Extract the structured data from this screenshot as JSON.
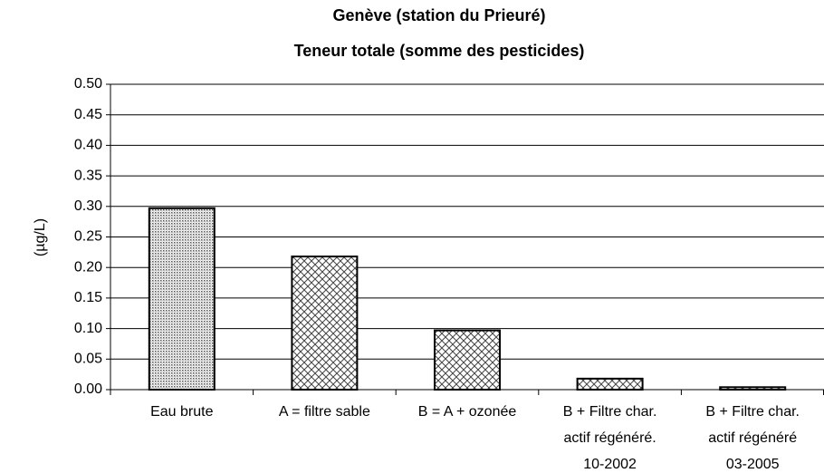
{
  "chart_data": {
    "type": "bar",
    "title": "Genève (station du Prieuré)",
    "subtitle": "Teneur totale (somme des pesticides)",
    "y_label": "(µg/L)",
    "categories": [
      "Eau brute",
      "A = filtre sable",
      "B = A + ozonée",
      "B + Filtre char.\nactif régénéré.\n10-2002",
      "B + Filtre char.\nactif régénéré\n03-2005"
    ],
    "values": [
      0.297,
      0.218,
      0.097,
      0.018,
      0.004
    ],
    "ylim": [
      0,
      0.5
    ],
    "yticks": [
      {
        "value": 0,
        "label": "0.00"
      },
      {
        "value": 0.05,
        "label": "0.05"
      },
      {
        "value": 0.1,
        "label": "0.10"
      },
      {
        "value": 0.15,
        "label": "0.15"
      },
      {
        "value": 0.2,
        "label": "0.20"
      },
      {
        "value": 0.25,
        "label": "0.25"
      },
      {
        "value": 0.3,
        "label": "0.30"
      },
      {
        "value": 0.35,
        "label": "0.35"
      },
      {
        "value": 0.4,
        "label": "0.40"
      },
      {
        "value": 0.45,
        "label": "0.45"
      },
      {
        "value": 0.5,
        "label": "0.50"
      }
    ],
    "grid": true
  }
}
